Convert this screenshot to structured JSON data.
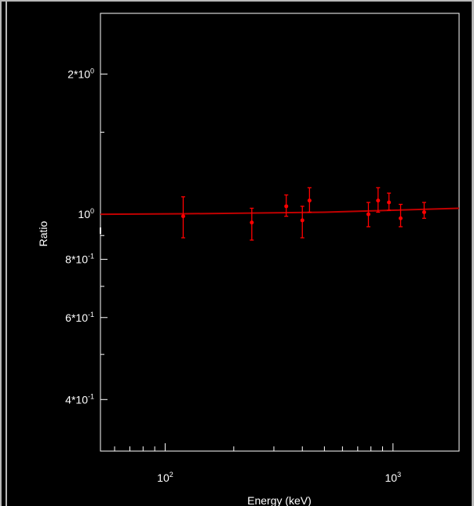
{
  "chart_data": {
    "type": "scatter",
    "xlabel": "Energy (keV)",
    "ylabel": "Ratio",
    "x_scale": "log",
    "y_scale": "log",
    "xlim": [
      52,
      1950
    ],
    "ylim": [
      0.31,
      2.7
    ],
    "grid": false,
    "x_ticks": [
      {
        "value": 100,
        "label_base": "10",
        "label_exp": "2"
      },
      {
        "value": 1000,
        "label_base": "10",
        "label_exp": "3"
      }
    ],
    "y_ticks": [
      {
        "value": 2,
        "label_base": "2*10",
        "label_exp": "0"
      },
      {
        "value": 1,
        "label_base": "10",
        "label_exp": "0"
      },
      {
        "value": 0.8,
        "label_base": "8*10",
        "label_exp": "-1"
      },
      {
        "value": 0.6,
        "label_base": "6*10",
        "label_exp": "-1"
      },
      {
        "value": 0.4,
        "label_base": "4*10",
        "label_exp": "-1"
      }
    ],
    "series": [
      {
        "color": "#ff0000",
        "points": [
          {
            "x": 120,
            "y": 0.99,
            "ylo": 0.89,
            "yhi": 1.09
          },
          {
            "x": 240,
            "y": 0.96,
            "ylo": 0.88,
            "yhi": 1.03
          },
          {
            "x": 340,
            "y": 1.04,
            "ylo": 0.99,
            "yhi": 1.1
          },
          {
            "x": 400,
            "y": 0.97,
            "ylo": 0.89,
            "yhi": 1.04
          },
          {
            "x": 430,
            "y": 1.07,
            "ylo": 1.01,
            "yhi": 1.14
          },
          {
            "x": 780,
            "y": 1.0,
            "ylo": 0.94,
            "yhi": 1.06
          },
          {
            "x": 860,
            "y": 1.07,
            "ylo": 1.01,
            "yhi": 1.14
          },
          {
            "x": 960,
            "y": 1.06,
            "ylo": 1.02,
            "yhi": 1.11
          },
          {
            "x": 1080,
            "y": 0.98,
            "ylo": 0.94,
            "yhi": 1.05
          },
          {
            "x": 1370,
            "y": 1.01,
            "ylo": 0.98,
            "yhi": 1.06
          }
        ]
      },
      {
        "type": "line",
        "color": "#c00000",
        "x": [
          52,
          120,
          500,
          1000,
          1950
        ],
        "y": [
          1.0,
          1.002,
          1.01,
          1.02,
          1.03
        ]
      }
    ]
  }
}
